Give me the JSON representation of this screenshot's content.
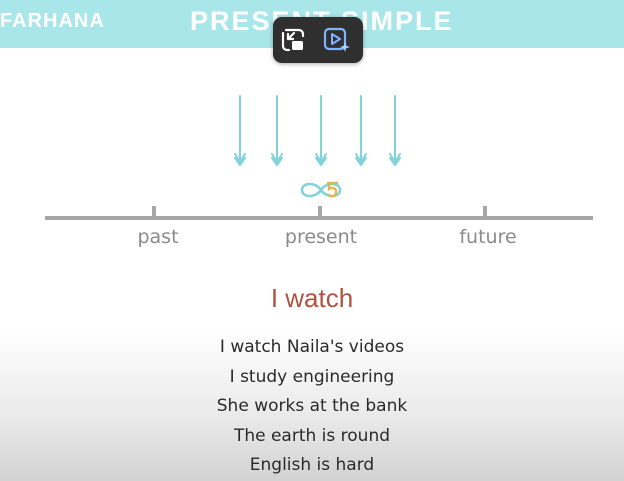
{
  "banner": {
    "brand": "FARHANA",
    "title": "PRESENT SIMPLE",
    "background": "#a9e6e9"
  },
  "overlay": {
    "exit_icon": "exit-fullscreen-icon",
    "play_icon": "play-sparkle-icon"
  },
  "timeline": {
    "labels": [
      "past",
      "present",
      "future"
    ]
  },
  "heading": "I watch",
  "examples": [
    "I watch Naila's videos",
    "I study engineering",
    "She works at the bank",
    "The earth is round",
    "English is hard"
  ],
  "colors": {
    "accent": "#7fd3d9",
    "heading": "#b0523f",
    "symbol_gold": "#e6b54a"
  }
}
